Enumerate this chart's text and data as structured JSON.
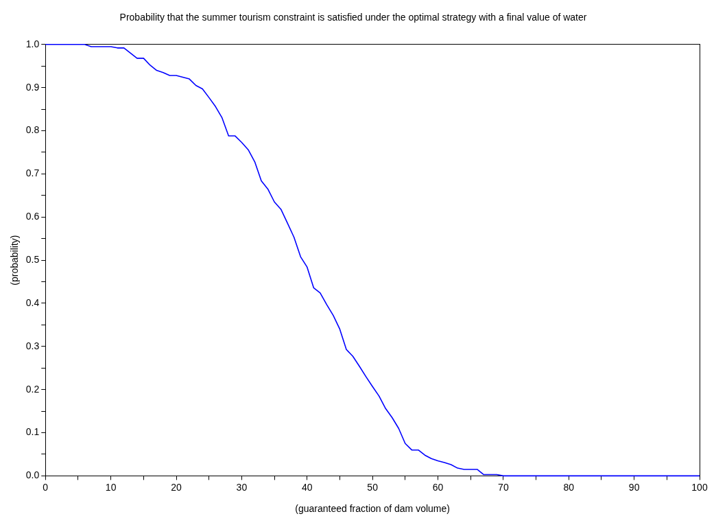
{
  "chart_data": {
    "type": "line",
    "title": "Probability that the summer tourism constraint is satisfied under the optimal strategy with a final value of water",
    "xlabel": "(guaranteed fraction of dam volume)",
    "ylabel": "(probability)",
    "x": [
      0,
      1,
      2,
      3,
      4,
      5,
      6,
      7,
      8,
      9,
      10,
      11,
      12,
      13,
      14,
      15,
      16,
      17,
      18,
      19,
      20,
      21,
      22,
      23,
      24,
      25,
      26,
      27,
      28,
      29,
      30,
      31,
      32,
      33,
      34,
      35,
      36,
      37,
      38,
      39,
      40,
      41,
      42,
      43,
      44,
      45,
      46,
      47,
      48,
      49,
      50,
      51,
      52,
      53,
      54,
      55,
      56,
      57,
      58,
      59,
      60,
      61,
      62,
      63,
      64,
      65,
      66,
      67,
      68,
      69,
      70,
      71,
      72,
      73,
      74,
      75,
      76,
      77,
      78,
      79,
      80,
      81,
      82,
      83,
      84,
      85,
      86,
      87,
      88,
      89,
      90,
      91,
      92,
      93,
      94,
      95,
      96,
      97,
      98,
      99,
      100
    ],
    "series": [
      {
        "color": "#0000ff",
        "values": [
          1,
          1,
          1,
          1,
          1,
          1,
          1,
          0.995,
          0.995,
          0.995,
          0.995,
          0.992,
          0.992,
          0.98,
          0.968,
          0.968,
          0.952,
          0.94,
          0.935,
          0.928,
          0.928,
          0.924,
          0.92,
          0.905,
          0.897,
          0.877,
          0.856,
          0.83,
          0.788,
          0.788,
          0.773,
          0.756,
          0.728,
          0.684,
          0.665,
          0.635,
          0.618,
          0.586,
          0.553,
          0.508,
          0.484,
          0.436,
          0.424,
          0.397,
          0.372,
          0.34,
          0.293,
          0.277,
          0.254,
          0.23,
          0.207,
          0.185,
          0.156,
          0.135,
          0.11,
          0.075,
          0.06,
          0.06,
          0.048,
          0.04,
          0.035,
          0.031,
          0.026,
          0.018,
          0.015,
          0.015,
          0.015,
          0.003,
          0.003,
          0.003,
          0,
          0,
          0,
          0,
          0,
          0,
          0,
          0,
          0,
          0,
          0,
          0,
          0,
          0,
          0,
          0,
          0,
          0,
          0,
          0,
          0,
          0,
          0,
          0,
          0,
          0,
          0,
          0,
          0,
          0,
          0
        ]
      }
    ],
    "xlim": [
      0,
      100
    ],
    "xticks": [
      0,
      {
        "value": 5,
        "label": null
      },
      10,
      {
        "value": 15,
        "label": null
      },
      20,
      {
        "value": 25,
        "label": null
      },
      30,
      {
        "value": 35,
        "label": null
      },
      40,
      {
        "value": 45,
        "label": null
      },
      50,
      {
        "value": 55,
        "label": null
      },
      60,
      {
        "value": 65,
        "label": null
      },
      70,
      {
        "value": 75,
        "label": null
      },
      80,
      {
        "value": 85,
        "label": null
      },
      90,
      {
        "value": 95,
        "label": null
      },
      100
    ],
    "ylim": [
      0,
      1
    ],
    "yticks": [
      {
        "value": 0,
        "label": "0.0"
      },
      {
        "value": 0.05,
        "label": null
      },
      {
        "value": 0.1,
        "label": "0.1"
      },
      {
        "value": 0.15,
        "label": null
      },
      {
        "value": 0.2,
        "label": "0.2"
      },
      {
        "value": 0.25,
        "label": null
      },
      {
        "value": 0.3,
        "label": "0.3"
      },
      {
        "value": 0.35,
        "label": null
      },
      {
        "value": 0.4,
        "label": "0.4"
      },
      {
        "value": 0.45,
        "label": null
      },
      {
        "value": 0.5,
        "label": "0.5"
      },
      {
        "value": 0.55,
        "label": null
      },
      {
        "value": 0.6,
        "label": "0.6"
      },
      {
        "value": 0.65,
        "label": null
      },
      {
        "value": 0.7,
        "label": "0.7"
      },
      {
        "value": 0.75,
        "label": null
      },
      {
        "value": 0.8,
        "label": "0.8"
      },
      {
        "value": 0.85,
        "label": null
      },
      {
        "value": 0.9,
        "label": "0.9"
      },
      {
        "value": 0.95,
        "label": null
      },
      {
        "value": 1,
        "label": "1.0"
      }
    ],
    "grid": false,
    "legend": false,
    "marker": "none",
    "line_style": "solid"
  }
}
